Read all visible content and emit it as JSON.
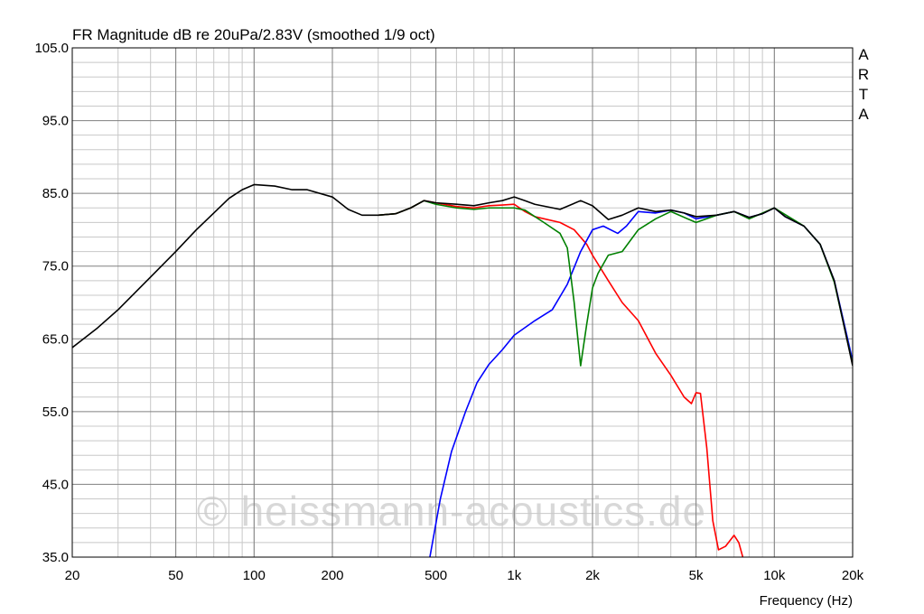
{
  "chart_data": {
    "type": "line",
    "title": "FR Magnitude dB re 20uPa/2.83V (smoothed 1/9 oct)",
    "x_label": "Frequency (Hz)",
    "brand": "ARTA",
    "watermark": "© heissmann-acoustics.de",
    "log_x": true,
    "grid": true,
    "minor_grid": true,
    "xlim": [
      20,
      20000
    ],
    "ylim": [
      35,
      105
    ],
    "xticks": [
      20,
      50,
      100,
      200,
      500,
      {
        "value": 1000,
        "label": "1k"
      },
      {
        "value": 2000,
        "label": "2k"
      },
      {
        "value": 5000,
        "label": "5k"
      },
      {
        "value": 10000,
        "label": "10k"
      },
      {
        "value": 20000,
        "label": "20k"
      }
    ],
    "yticks": [
      {
        "value": 35,
        "label": "35.0"
      },
      {
        "value": 45,
        "label": "45.0"
      },
      {
        "value": 55,
        "label": "55.0"
      },
      {
        "value": 65,
        "label": "65.0"
      },
      {
        "value": 75,
        "label": "75.0"
      },
      {
        "value": 85,
        "label": "85.0"
      },
      {
        "value": 95,
        "label": "95.0"
      },
      {
        "value": 105,
        "label": "105.0"
      }
    ],
    "series": [
      {
        "color": "#ff0000",
        "x": [
          300,
          350,
          400,
          450,
          500,
          600,
          700,
          800,
          900,
          1000,
          1100,
          1200,
          1500,
          1700,
          1900,
          2000,
          2300,
          2600,
          3000,
          3500,
          4000,
          4500,
          4800,
          5000,
          5200,
          5500,
          5800,
          6100,
          6500,
          7000,
          7300,
          7700
        ],
        "values": [
          82,
          82.2,
          83,
          84,
          83.7,
          83.2,
          83,
          83.3,
          83.4,
          83.5,
          82.5,
          81.8,
          81,
          80,
          78,
          76.5,
          73,
          70,
          67.5,
          63,
          60,
          57,
          56.1,
          57.6,
          57.5,
          50,
          40,
          36,
          36.5,
          38,
          37,
          34
        ]
      },
      {
        "color": "#0000ff",
        "x": [
          474,
          520,
          574,
          650,
          720,
          800,
          900,
          1000,
          1200,
          1400,
          1600,
          1800,
          2000,
          2200,
          2500,
          2700,
          3000,
          3500,
          4000,
          4500,
          5000,
          6000,
          7000,
          8000,
          9000,
          10000,
          11000,
          13000,
          15000,
          17000,
          20000
        ],
        "values": [
          35,
          43,
          49.5,
          55,
          59,
          61.5,
          63.5,
          65.5,
          67.5,
          69,
          72.5,
          77,
          80,
          80.5,
          79.5,
          80.5,
          82.5,
          82.3,
          82.7,
          82.3,
          81.5,
          82,
          82.5,
          81.7,
          82.2,
          83,
          81.8,
          80.5,
          78,
          73,
          62
        ]
      },
      {
        "color": "#008000",
        "x": [
          300,
          350,
          400,
          450,
          500,
          600,
          700,
          800,
          1000,
          1100,
          1300,
          1500,
          1600,
          1700,
          1800,
          1900,
          2000,
          2100,
          2300,
          2600,
          3000,
          3500,
          4000,
          5000,
          6000,
          7000,
          8000,
          10000,
          13000,
          15000,
          17000,
          20000
        ],
        "values": [
          82,
          82.2,
          83,
          84,
          83.5,
          83,
          82.8,
          83,
          83,
          82.7,
          81,
          79.5,
          77.5,
          70,
          61.3,
          67,
          72,
          74,
          76.5,
          77,
          80,
          81.5,
          82.5,
          81,
          82,
          82.5,
          81.5,
          83,
          80.5,
          78,
          72.8,
          61.5
        ]
      },
      {
        "color": "#000000",
        "x": [
          20,
          25,
          30,
          40,
          50,
          60,
          70,
          80,
          90,
          100,
          120,
          140,
          160,
          200,
          230,
          260,
          300,
          350,
          400,
          450,
          500,
          600,
          700,
          800,
          900,
          1000,
          1100,
          1200,
          1500,
          1800,
          2000,
          2300,
          2600,
          3000,
          3500,
          4000,
          4500,
          5000,
          6000,
          7000,
          8000,
          9000,
          10000,
          11000,
          13000,
          15000,
          17000,
          20000
        ],
        "values": [
          63.8,
          66.5,
          69,
          73.5,
          77,
          80,
          82.3,
          84.3,
          85.5,
          86.2,
          86,
          85.5,
          85.5,
          84.5,
          82.8,
          82,
          82,
          82.2,
          83,
          84,
          83.7,
          83.5,
          83.3,
          83.7,
          84,
          84.5,
          84,
          83.5,
          82.8,
          84,
          83.3,
          81.4,
          82,
          83,
          82.5,
          82.7,
          82.3,
          81.8,
          82,
          82.5,
          81.7,
          82.2,
          83,
          81.8,
          80.5,
          78,
          73,
          61.3
        ]
      }
    ]
  }
}
